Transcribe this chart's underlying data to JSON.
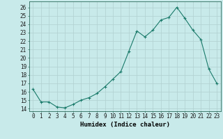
{
  "x": [
    0,
    1,
    2,
    3,
    4,
    5,
    6,
    7,
    8,
    9,
    10,
    11,
    12,
    13,
    14,
    15,
    16,
    17,
    18,
    19,
    20,
    21,
    22,
    23
  ],
  "y": [
    16.3,
    14.8,
    14.8,
    14.2,
    14.1,
    14.5,
    15.0,
    15.3,
    15.8,
    16.6,
    17.5,
    18.4,
    20.8,
    23.2,
    22.5,
    23.3,
    24.5,
    24.8,
    26.0,
    24.7,
    23.3,
    22.2,
    18.7,
    17.0
  ],
  "line_color": "#1a7a6a",
  "marker": "+",
  "marker_size": 3,
  "bg_color": "#c8eaea",
  "grid_color": "#b0d0d0",
  "xlabel": "Humidex (Indice chaleur)",
  "ylabel_ticks": [
    14,
    15,
    16,
    17,
    18,
    19,
    20,
    21,
    22,
    23,
    24,
    25,
    26
  ],
  "xlim": [
    -0.5,
    23.5
  ],
  "ylim": [
    13.7,
    26.7
  ],
  "tick_fontsize": 5.5,
  "xlabel_fontsize": 6.5
}
